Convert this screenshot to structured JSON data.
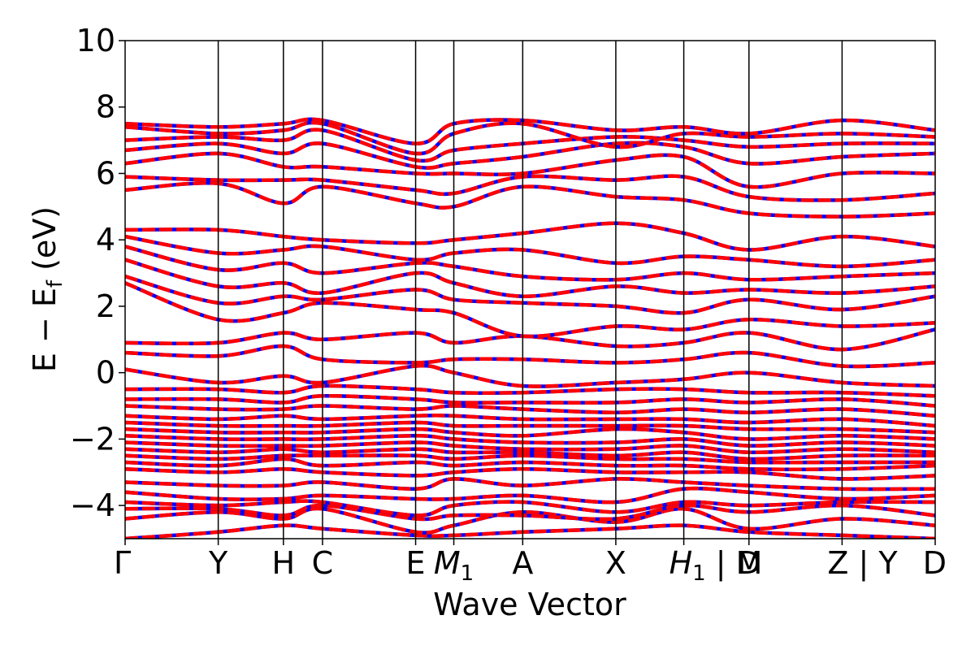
{
  "chart_data": {
    "type": "line",
    "title": "",
    "xlabel": "Wave Vector",
    "ylabel_main": "E − E",
    "ylabel_sub": "f",
    "ylabel_unit": " (eV)",
    "ylim": [
      -5,
      10
    ],
    "yticks": [
      {
        "value": 10,
        "label": "10"
      },
      {
        "value": 8,
        "label": "8"
      },
      {
        "value": 6,
        "label": "6"
      },
      {
        "value": 4,
        "label": "4"
      },
      {
        "value": 2,
        "label": "2"
      },
      {
        "value": 0,
        "label": "0"
      },
      {
        "value": -2,
        "label": "−2"
      },
      {
        "value": -4,
        "label": "−4"
      }
    ],
    "xlim": [
      0,
      8.7
    ],
    "kpoints": [
      {
        "x": 0.0,
        "label": "Γ"
      },
      {
        "x": 1.0,
        "label": "Y"
      },
      {
        "x": 1.7,
        "label": "H"
      },
      {
        "x": 2.12,
        "label": "C"
      },
      {
        "x": 3.12,
        "label": "E"
      },
      {
        "x": 3.53,
        "label": "M",
        "sub": "1"
      },
      {
        "x": 4.27,
        "label": "A"
      },
      {
        "x": 5.27,
        "label": "X"
      },
      {
        "x": 6.0,
        "label": "H",
        "sub": "1",
        "suffix": " | M"
      },
      {
        "x": 6.7,
        "label": "D"
      },
      {
        "x": 7.7,
        "label": "Z",
        "suffix": " | Y"
      },
      {
        "x": 8.7,
        "label": "D"
      }
    ],
    "grid": false,
    "legend": "none",
    "series_styles": [
      {
        "color": "#0000ff",
        "style": "solid"
      },
      {
        "color": "#ff0000",
        "style": "dashed"
      }
    ],
    "bands": [
      {
        "x": [
          0,
          1,
          1.7,
          2.12,
          3.12,
          3.53,
          4.27,
          5.27,
          6.0,
          6.7,
          7.7,
          8.7
        ],
        "y": [
          -5.0,
          -4.8,
          -4.6,
          -4.7,
          -4.9,
          -4.9,
          -4.8,
          -4.7,
          -4.6,
          -4.8,
          -4.9,
          -5.0
        ]
      },
      {
        "x": [
          0,
          1,
          1.7,
          2.12,
          3.12,
          3.53,
          4.27,
          5.27,
          6.0,
          6.7,
          7.7,
          8.7
        ],
        "y": [
          -4.4,
          -4.2,
          -4.4,
          -4.1,
          -4.8,
          -4.6,
          -4.2,
          -4.5,
          -4.1,
          -4.7,
          -4.4,
          -4.6
        ]
      },
      {
        "x": [
          0,
          1,
          1.7,
          2.12,
          3.12,
          3.53,
          4.27,
          5.27,
          6.0,
          6.7,
          7.7,
          8.7
        ],
        "y": [
          -4.1,
          -4.1,
          -4.3,
          -4.0,
          -4.4,
          -4.3,
          -4.3,
          -4.4,
          -4.0,
          -4.2,
          -4.0,
          -4.3
        ]
      },
      {
        "x": [
          0,
          1,
          1.7,
          2.12,
          3.12,
          3.53,
          4.27,
          5.27,
          6.0,
          6.7,
          7.7,
          8.7
        ],
        "y": [
          -3.9,
          -4.0,
          -3.9,
          -3.9,
          -4.3,
          -4.0,
          -3.9,
          -4.2,
          -3.9,
          -4.0,
          -3.9,
          -3.9
        ]
      },
      {
        "x": [
          0,
          1,
          1.7,
          2.12,
          3.12,
          3.53,
          4.27,
          5.27,
          6.0,
          6.7,
          7.7,
          8.7
        ],
        "y": [
          -3.6,
          -3.8,
          -3.8,
          -3.7,
          -3.8,
          -3.8,
          -3.7,
          -3.9,
          -3.5,
          -3.6,
          -3.8,
          -3.7
        ]
      },
      {
        "x": [
          0,
          1,
          1.7,
          2.12,
          3.12,
          3.53,
          4.27,
          5.27,
          6.0,
          6.7,
          7.7,
          8.7
        ],
        "y": [
          -3.3,
          -3.4,
          -3.4,
          -3.3,
          -3.5,
          -3.2,
          -3.4,
          -3.2,
          -3.3,
          -3.4,
          -3.5,
          -3.5
        ]
      },
      {
        "x": [
          0,
          1,
          1.7,
          2.12,
          3.12,
          3.53,
          4.27,
          5.27,
          6.0,
          6.7,
          7.7,
          8.7
        ],
        "y": [
          -2.9,
          -3.0,
          -2.9,
          -3.0,
          -3.1,
          -3.0,
          -2.9,
          -3.0,
          -3.0,
          -3.0,
          -3.2,
          -3.1
        ]
      },
      {
        "x": [
          0,
          1,
          1.7,
          2.12,
          3.12,
          3.53,
          4.27,
          5.27,
          6.0,
          6.7,
          7.7,
          8.7
        ],
        "y": [
          -2.7,
          -2.8,
          -2.6,
          -2.8,
          -2.7,
          -2.8,
          -2.7,
          -2.8,
          -2.8,
          -2.9,
          -2.9,
          -2.8
        ]
      },
      {
        "x": [
          0,
          1,
          1.7,
          2.12,
          3.12,
          3.53,
          4.27,
          5.27,
          6.0,
          6.7,
          7.7,
          8.7
        ],
        "y": [
          -2.5,
          -2.6,
          -2.5,
          -2.5,
          -2.5,
          -2.6,
          -2.5,
          -2.6,
          -2.6,
          -2.7,
          -2.7,
          -2.7
        ]
      },
      {
        "x": [
          0,
          1,
          1.7,
          2.12,
          3.12,
          3.53,
          4.27,
          5.27,
          6.0,
          6.7,
          7.7,
          8.7
        ],
        "y": [
          -2.3,
          -2.4,
          -2.3,
          -2.4,
          -2.3,
          -2.4,
          -2.4,
          -2.5,
          -2.4,
          -2.6,
          -2.5,
          -2.5
        ]
      },
      {
        "x": [
          0,
          1,
          1.7,
          2.12,
          3.12,
          3.53,
          4.27,
          5.27,
          6.0,
          6.7,
          7.7,
          8.7
        ],
        "y": [
          -2.1,
          -2.2,
          -2.2,
          -2.2,
          -2.1,
          -2.2,
          -2.3,
          -2.3,
          -2.2,
          -2.4,
          -2.3,
          -2.4
        ]
      },
      {
        "x": [
          0,
          1,
          1.7,
          2.12,
          3.12,
          3.53,
          4.27,
          5.27,
          6.0,
          6.7,
          7.7,
          8.7
        ],
        "y": [
          -1.9,
          -2.0,
          -2.0,
          -2.0,
          -1.9,
          -2.0,
          -2.1,
          -2.1,
          -2.0,
          -2.2,
          -2.1,
          -2.2
        ]
      },
      {
        "x": [
          0,
          1,
          1.7,
          2.12,
          3.12,
          3.53,
          4.27,
          5.27,
          6.0,
          6.7,
          7.7,
          8.7
        ],
        "y": [
          -1.7,
          -1.8,
          -1.8,
          -1.8,
          -1.7,
          -1.8,
          -1.9,
          -1.7,
          -1.8,
          -2.0,
          -1.9,
          -2.0
        ]
      },
      {
        "x": [
          0,
          1,
          1.7,
          2.12,
          3.12,
          3.53,
          4.27,
          5.27,
          6.0,
          6.7,
          7.7,
          8.7
        ],
        "y": [
          -1.5,
          -1.6,
          -1.6,
          -1.6,
          -1.5,
          -1.6,
          -1.6,
          -1.6,
          -1.6,
          -1.7,
          -1.7,
          -1.8
        ]
      },
      {
        "x": [
          0,
          1,
          1.7,
          2.12,
          3.12,
          3.53,
          4.27,
          5.27,
          6.0,
          6.7,
          7.7,
          8.7
        ],
        "y": [
          -1.3,
          -1.4,
          -1.3,
          -1.4,
          -1.3,
          -1.3,
          -1.4,
          -1.4,
          -1.4,
          -1.5,
          -1.4,
          -1.6
        ]
      },
      {
        "x": [
          0,
          1,
          1.7,
          2.12,
          3.12,
          3.53,
          4.27,
          5.27,
          6.0,
          6.7,
          7.7,
          8.7
        ],
        "y": [
          -1.0,
          -1.1,
          -1.1,
          -1.0,
          -1.1,
          -1.0,
          -1.1,
          -1.2,
          -1.1,
          -1.2,
          -1.1,
          -1.3
        ]
      },
      {
        "x": [
          0,
          1,
          1.7,
          2.12,
          3.12,
          3.53,
          4.27,
          5.27,
          6.0,
          6.7,
          7.7,
          8.7
        ],
        "y": [
          -0.8,
          -0.8,
          -0.9,
          -0.7,
          -0.8,
          -0.9,
          -0.9,
          -0.9,
          -0.8,
          -0.9,
          -0.8,
          -1.0
        ]
      },
      {
        "x": [
          0,
          1,
          1.7,
          2.12,
          3.12,
          3.53,
          4.27,
          5.27,
          6.0,
          6.7,
          7.7,
          8.7
        ],
        "y": [
          -0.5,
          -0.5,
          -0.6,
          -0.4,
          -0.5,
          -0.6,
          -0.6,
          -0.5,
          -0.5,
          -0.6,
          -0.6,
          -0.7
        ]
      },
      {
        "x": [
          0,
          1,
          1.7,
          2.12,
          3.12,
          3.53,
          4.27,
          5.27,
          6.0,
          6.7,
          7.7,
          8.7
        ],
        "y": [
          0.1,
          -0.3,
          -0.1,
          -0.3,
          0.2,
          0.0,
          -0.4,
          -0.3,
          -0.2,
          0.0,
          -0.3,
          -0.4
        ]
      },
      {
        "x": [
          0,
          1,
          1.7,
          2.12,
          3.12,
          3.53,
          4.27,
          5.27,
          6.0,
          6.7,
          7.7,
          8.7
        ],
        "y": [
          0.6,
          0.5,
          0.8,
          0.4,
          0.3,
          0.4,
          0.4,
          0.3,
          0.4,
          0.6,
          0.2,
          0.3
        ]
      },
      {
        "x": [
          0,
          1,
          1.7,
          2.12,
          3.12,
          3.53,
          4.27,
          5.27,
          6.0,
          6.7,
          7.7,
          8.7
        ],
        "y": [
          0.9,
          0.9,
          1.2,
          1.0,
          1.2,
          0.9,
          1.1,
          0.8,
          0.9,
          1.2,
          0.7,
          1.3
        ]
      },
      {
        "x": [
          0,
          1,
          1.7,
          2.12,
          3.12,
          3.53,
          4.27,
          5.27,
          6.0,
          6.7,
          7.7,
          8.7
        ],
        "y": [
          2.7,
          1.6,
          1.8,
          2.1,
          1.9,
          1.8,
          1.1,
          1.4,
          1.3,
          1.6,
          1.4,
          1.5
        ]
      },
      {
        "x": [
          0,
          1,
          1.7,
          2.12,
          3.12,
          3.53,
          4.27,
          5.27,
          6.0,
          6.7,
          7.7,
          8.7
        ],
        "y": [
          2.9,
          2.1,
          2.3,
          2.2,
          2.5,
          2.2,
          2.1,
          2.0,
          1.8,
          2.2,
          1.9,
          2.3
        ]
      },
      {
        "x": [
          0,
          1,
          1.7,
          2.12,
          3.12,
          3.53,
          4.27,
          5.27,
          6.0,
          6.7,
          7.7,
          8.7
        ],
        "y": [
          3.4,
          2.6,
          2.7,
          2.4,
          3.0,
          2.7,
          2.3,
          2.6,
          2.4,
          2.5,
          2.4,
          2.6
        ]
      },
      {
        "x": [
          0,
          1,
          1.7,
          2.12,
          3.12,
          3.53,
          4.27,
          5.27,
          6.0,
          6.7,
          7.7,
          8.7
        ],
        "y": [
          3.8,
          3.1,
          3.3,
          3.0,
          3.3,
          3.2,
          2.9,
          2.8,
          3.0,
          2.8,
          2.9,
          3.0
        ]
      },
      {
        "x": [
          0,
          1,
          1.7,
          2.12,
          3.12,
          3.53,
          4.27,
          5.27,
          6.0,
          6.7,
          7.7,
          8.7
        ],
        "y": [
          4.1,
          3.6,
          3.7,
          3.8,
          3.4,
          3.6,
          3.7,
          3.3,
          3.5,
          3.4,
          3.2,
          3.4
        ]
      },
      {
        "x": [
          0,
          1,
          1.7,
          2.12,
          3.12,
          3.53,
          4.27,
          5.27,
          6.0,
          6.7,
          7.7,
          8.7
        ],
        "y": [
          4.3,
          4.3,
          4.1,
          4.0,
          3.9,
          4.0,
          4.2,
          4.5,
          4.2,
          3.7,
          4.1,
          3.8
        ]
      },
      {
        "x": [
          0,
          1,
          1.7,
          2.12,
          3.12,
          3.53,
          4.27,
          5.27,
          6.0,
          6.7,
          7.7,
          8.7
        ],
        "y": [
          5.5,
          5.7,
          5.1,
          5.6,
          5.1,
          5.0,
          5.6,
          5.3,
          5.2,
          4.8,
          4.7,
          4.8
        ]
      },
      {
        "x": [
          0,
          1,
          1.7,
          2.12,
          3.12,
          3.53,
          4.27,
          5.27,
          6.0,
          6.7,
          7.7,
          8.7
        ],
        "y": [
          5.9,
          5.8,
          5.8,
          5.8,
          5.5,
          5.4,
          5.9,
          5.8,
          5.9,
          5.3,
          5.2,
          5.4
        ]
      },
      {
        "x": [
          0,
          1,
          1.7,
          2.12,
          3.12,
          3.53,
          4.27,
          5.27,
          6.0,
          6.7,
          7.7,
          8.7
        ],
        "y": [
          6.3,
          6.6,
          6.2,
          6.2,
          6.0,
          6.0,
          6.0,
          6.4,
          6.5,
          5.6,
          6.0,
          6.0
        ]
      },
      {
        "x": [
          0,
          1,
          1.7,
          2.12,
          3.12,
          3.53,
          4.27,
          5.27,
          6.0,
          6.7,
          7.7,
          8.7
        ],
        "y": [
          6.7,
          6.9,
          6.6,
          6.9,
          6.2,
          6.3,
          6.5,
          6.9,
          6.8,
          6.3,
          6.5,
          6.6
        ]
      },
      {
        "x": [
          0,
          1,
          1.7,
          2.12,
          3.12,
          3.53,
          4.27,
          5.27,
          6.0,
          6.7,
          7.7,
          8.7
        ],
        "y": [
          7.0,
          7.1,
          7.0,
          7.3,
          6.4,
          6.7,
          6.9,
          7.1,
          7.0,
          6.8,
          6.9,
          6.9
        ]
      },
      {
        "x": [
          0,
          1,
          1.7,
          2.12,
          3.12,
          3.53,
          4.27,
          5.27,
          6.0,
          6.7,
          7.7,
          8.7
        ],
        "y": [
          7.4,
          7.2,
          7.3,
          7.5,
          6.6,
          7.2,
          7.5,
          6.8,
          7.2,
          7.1,
          7.2,
          7.1
        ]
      },
      {
        "x": [
          0,
          1,
          1.7,
          2.12,
          3.12,
          3.53,
          4.27,
          5.27,
          6.0,
          6.7,
          7.7,
          8.7
        ],
        "y": [
          7.5,
          7.4,
          7.5,
          7.6,
          6.9,
          7.5,
          7.6,
          7.3,
          7.4,
          7.2,
          7.6,
          7.3
        ]
      }
    ]
  }
}
